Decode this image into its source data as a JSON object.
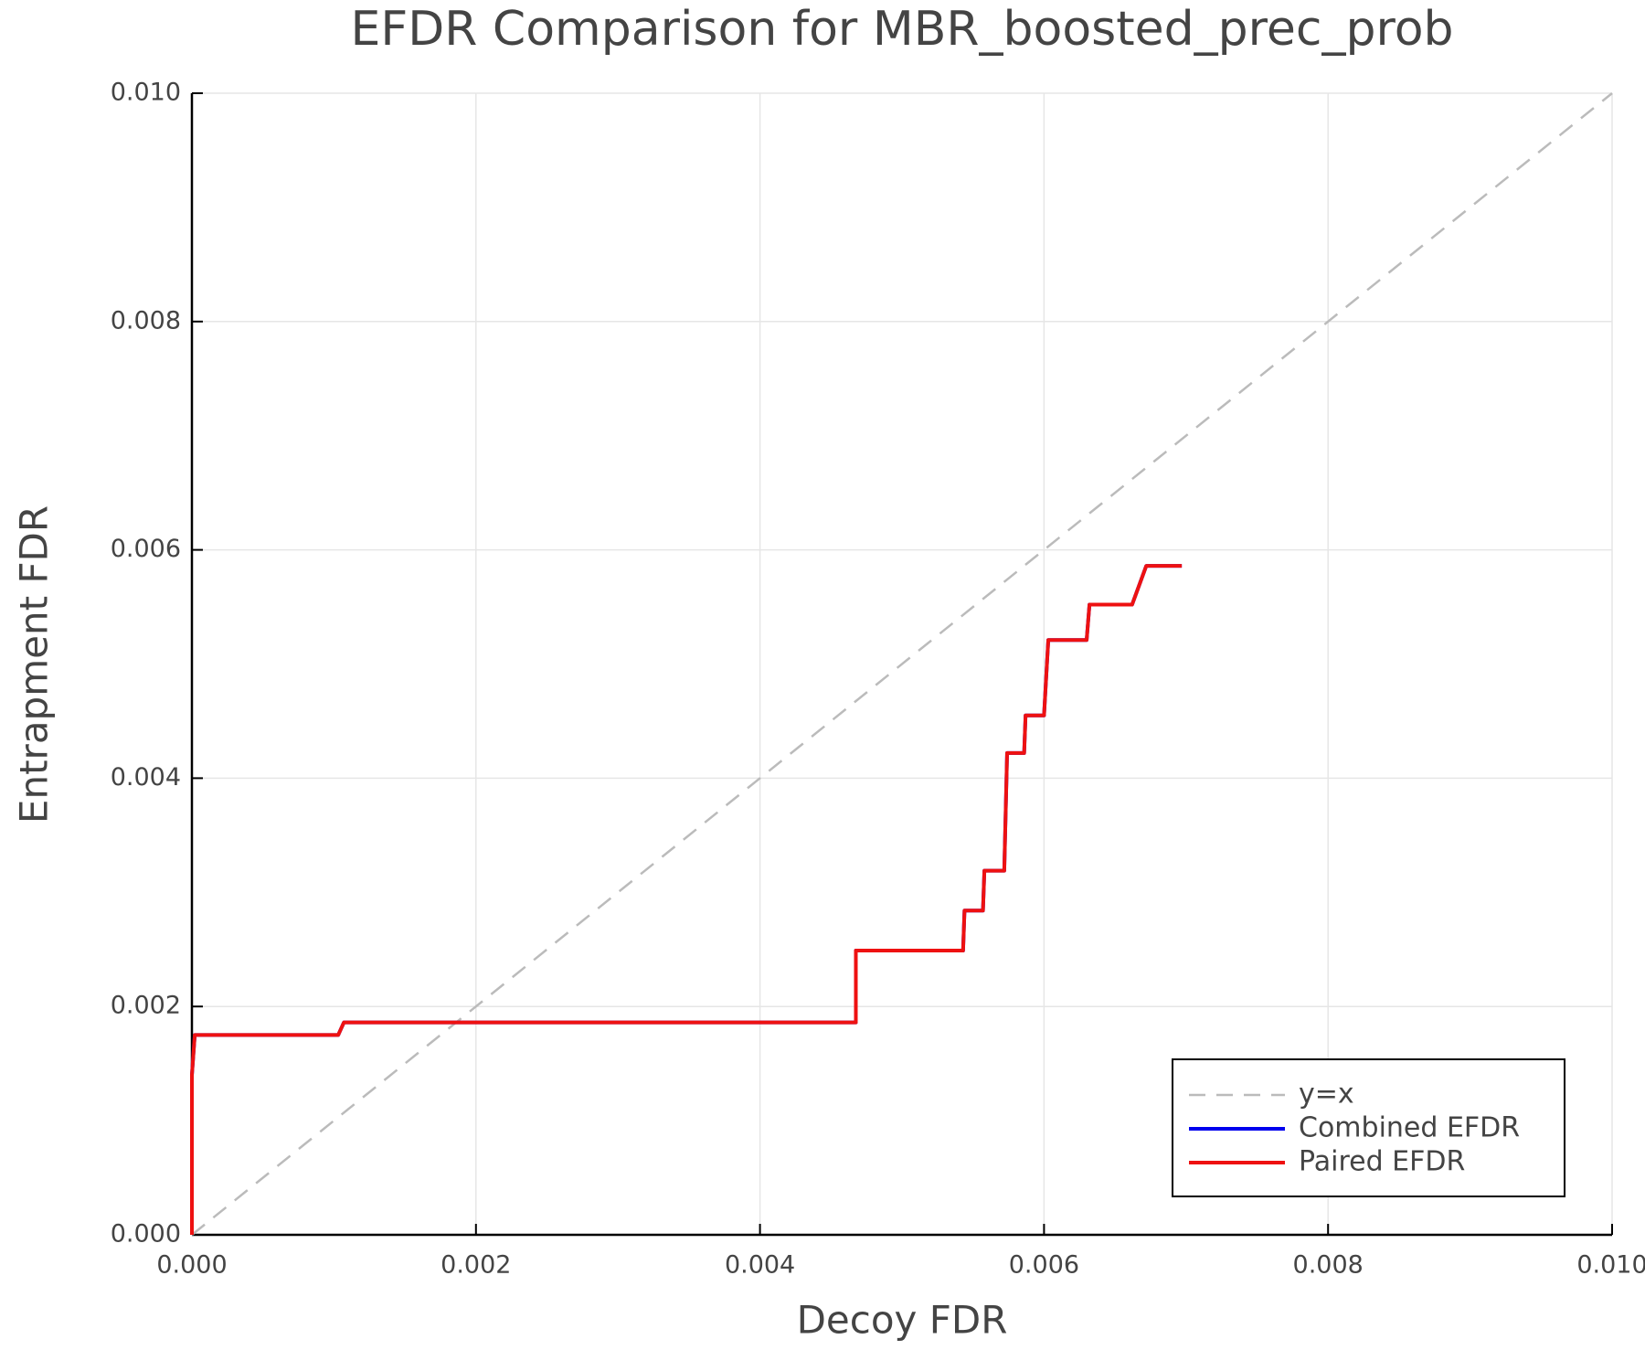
{
  "chart_data": {
    "type": "line",
    "title": "EFDR Comparison for MBR_boosted_prec_prob",
    "x_label": "Decoy FDR",
    "y_label": "Entrapment FDR",
    "xlim": [
      0,
      0.01
    ],
    "ylim": [
      0,
      0.01
    ],
    "xticks": [
      {
        "value": 0,
        "label": "0.000"
      },
      {
        "value": 0.002,
        "label": "0.002"
      },
      {
        "value": 0.004,
        "label": "0.004"
      },
      {
        "value": 0.006,
        "label": "0.006"
      },
      {
        "value": 0.008,
        "label": "0.008"
      },
      {
        "value": 0.01,
        "label": "0.010"
      }
    ],
    "yticks": [
      {
        "value": 0,
        "label": "0.000"
      },
      {
        "value": 0.002,
        "label": "0.002"
      },
      {
        "value": 0.004,
        "label": "0.004"
      },
      {
        "value": 0.006,
        "label": "0.006"
      },
      {
        "value": 0.008,
        "label": "0.008"
      },
      {
        "value": 0.01,
        "label": "0.010"
      }
    ],
    "grid": true,
    "legend_position": "lower-right",
    "series": [
      {
        "name": "y=x",
        "color": "#bbbbbb",
        "dashed": true,
        "x": [
          0,
          0.01
        ],
        "values": [
          0,
          0.01
        ]
      },
      {
        "name": "Combined EFDR",
        "color": "#0000ee",
        "dashed": false,
        "x": [
          0,
          0,
          2e-05,
          0.00103,
          0.00107,
          0.004675,
          0.004675,
          0.00543,
          0.00544,
          0.00557,
          0.00558,
          0.00572,
          0.00574,
          0.00586,
          0.00587,
          0.006,
          0.00603,
          0.0063,
          0.00632,
          0.00662,
          0.00672,
          0.00697
        ],
        "values": [
          0,
          0.0014,
          0.00175,
          0.00175,
          0.00186,
          0.00186,
          0.00249,
          0.00249,
          0.00284,
          0.00284,
          0.00319,
          0.00319,
          0.00422,
          0.00422,
          0.00455,
          0.00455,
          0.00521,
          0.00521,
          0.00552,
          0.00552,
          0.00586,
          0.00586
        ]
      },
      {
        "name": "Paired EFDR",
        "color": "#ee1111",
        "dashed": false,
        "x": [
          0,
          0,
          2e-05,
          0.00103,
          0.00107,
          0.004675,
          0.004675,
          0.00543,
          0.00544,
          0.00557,
          0.00558,
          0.00572,
          0.00574,
          0.00586,
          0.00587,
          0.006,
          0.00603,
          0.0063,
          0.00632,
          0.00662,
          0.00672,
          0.00697
        ],
        "values": [
          0,
          0.0014,
          0.00175,
          0.00175,
          0.00186,
          0.00186,
          0.00249,
          0.00249,
          0.00284,
          0.00284,
          0.00319,
          0.00319,
          0.00422,
          0.00422,
          0.00455,
          0.00455,
          0.00521,
          0.00521,
          0.00552,
          0.00552,
          0.00586,
          0.00586
        ]
      }
    ]
  }
}
